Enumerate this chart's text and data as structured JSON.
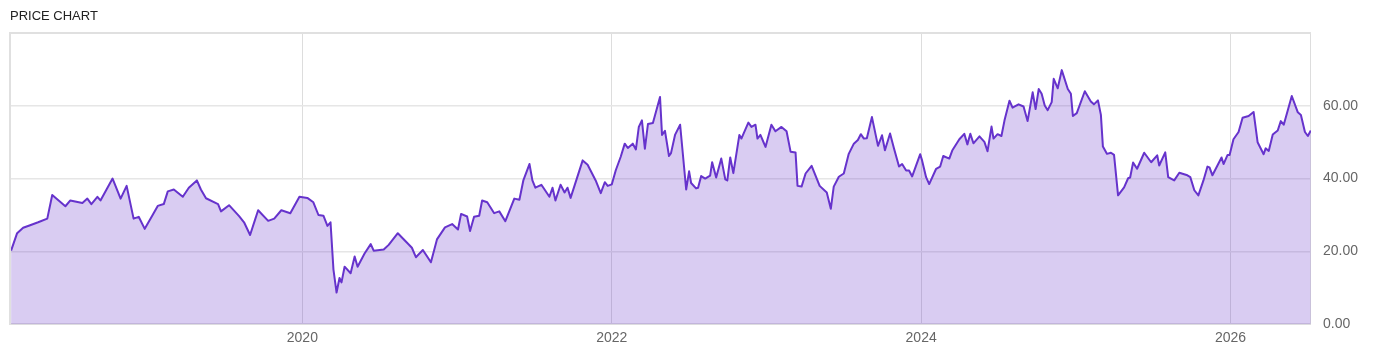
{
  "chart_data": {
    "type": "area",
    "title": "PRICE CHART",
    "xlim": [
      2018.11,
      2026.52
    ],
    "xticks": [
      2020,
      2022,
      2024,
      2026
    ],
    "ylim": [
      0,
      80
    ],
    "yticks": [
      {
        "value": 0,
        "label": "0.00"
      },
      {
        "value": 20,
        "label": "20.00"
      },
      {
        "value": 40,
        "label": "40.00"
      },
      {
        "value": 60,
        "label": "60.00"
      }
    ],
    "grid": true,
    "legend": false,
    "series": [
      {
        "color": "#6633cc",
        "x": [
          2018.117,
          2018.156,
          2018.195,
          2018.24,
          2018.292,
          2018.351,
          2018.383,
          2018.468,
          2018.5,
          2018.578,
          2018.61,
          2018.636,
          2018.675,
          2018.695,
          2018.773,
          2018.792,
          2018.825,
          2018.864,
          2018.909,
          2018.942,
          2018.981,
          2019.032,
          2019.065,
          2019.104,
          2019.13,
          2019.169,
          2019.227,
          2019.266,
          2019.318,
          2019.344,
          2019.377,
          2019.455,
          2019.474,
          2019.526,
          2019.591,
          2019.623,
          2019.662,
          2019.714,
          2019.779,
          2019.818,
          2019.864,
          2019.922,
          2019.981,
          2020.032,
          2020.071,
          2020.104,
          2020.136,
          2020.162,
          2020.182,
          2020.201,
          2020.221,
          2020.24,
          2020.253,
          2020.273,
          2020.312,
          2020.338,
          2020.357,
          2020.403,
          2020.442,
          2020.461,
          2020.526,
          2020.558,
          2020.617,
          2020.708,
          2020.734,
          2020.779,
          2020.831,
          2020.87,
          2020.922,
          2020.968,
          2021.006,
          2021.026,
          2021.065,
          2021.084,
          2021.11,
          2021.143,
          2021.162,
          2021.195,
          2021.24,
          2021.273,
          2021.312,
          2021.37,
          2021.403,
          2021.429,
          2021.468,
          2021.487,
          2021.506,
          2021.545,
          2021.597,
          2021.617,
          2021.636,
          2021.669,
          2021.695,
          2021.714,
          2021.734,
          2021.812,
          2021.844,
          2021.896,
          2021.929,
          2021.955,
          2021.974,
          2022.0,
          2022.026,
          2022.058,
          2022.084,
          2022.104,
          2022.136,
          2022.156,
          2022.175,
          2022.195,
          2022.214,
          2022.234,
          2022.266,
          2022.312,
          2022.325,
          2022.344,
          2022.37,
          2022.383,
          2022.409,
          2022.442,
          2022.481,
          2022.5,
          2022.513,
          2022.545,
          2022.558,
          2022.578,
          2022.604,
          2022.636,
          2022.649,
          2022.675,
          2022.708,
          2022.734,
          2022.747,
          2022.766,
          2022.786,
          2022.825,
          2022.838,
          2022.883,
          2022.903,
          2022.929,
          2022.942,
          2022.961,
          2022.994,
          2023.032,
          2023.058,
          2023.097,
          2023.13,
          2023.156,
          2023.188,
          2023.201,
          2023.227,
          2023.253,
          2023.292,
          2023.344,
          2023.39,
          2023.416,
          2023.435,
          2023.468,
          2023.5,
          2023.532,
          2023.565,
          2023.591,
          2023.61,
          2023.63,
          2023.649,
          2023.682,
          2023.721,
          2023.747,
          2023.766,
          2023.799,
          2023.825,
          2023.857,
          2023.877,
          2023.903,
          2023.922,
          2023.942,
          2023.994,
          2024.006,
          2024.032,
          2024.052,
          2024.097,
          2024.123,
          2024.143,
          2024.182,
          2024.201,
          2024.247,
          2024.279,
          2024.299,
          2024.318,
          2024.338,
          2024.377,
          2024.409,
          2024.429,
          2024.455,
          2024.468,
          2024.494,
          2024.519,
          2024.539,
          2024.571,
          2024.591,
          2024.63,
          2024.662,
          2024.688,
          2024.721,
          2024.74,
          2024.76,
          2024.779,
          2024.799,
          2024.818,
          2024.844,
          2024.857,
          2024.883,
          2024.909,
          2024.948,
          2024.968,
          2024.981,
          2025.006,
          2025.058,
          2025.097,
          2025.117,
          2025.143,
          2025.162,
          2025.175,
          2025.201,
          2025.227,
          2025.247,
          2025.273,
          2025.312,
          2025.338,
          2025.351,
          2025.37,
          2025.396,
          2025.442,
          2025.487,
          2025.526,
          2025.539,
          2025.578,
          2025.597,
          2025.636,
          2025.669,
          2025.721,
          2025.74,
          2025.766,
          2025.792,
          2025.825,
          2025.851,
          2025.864,
          2025.883,
          2025.942,
          2025.955,
          2025.981,
          2025.994,
          2026.019,
          2026.052,
          2026.078,
          2026.117,
          2026.149,
          2026.175,
          2026.214,
          2026.227,
          2026.247,
          2026.273,
          2026.305,
          2026.325,
          2026.344,
          2026.396,
          2026.435,
          2026.455,
          2026.481,
          2026.5,
          2026.519
        ],
        "values": [
          20.2,
          25,
          26.5,
          27.2,
          28,
          29,
          35.5,
          32.4,
          34,
          33.3,
          34.5,
          33,
          35,
          34,
          40,
          38,
          34.5,
          38,
          29,
          29.5,
          26.2,
          30,
          32.5,
          33,
          36.5,
          37,
          35,
          37.5,
          39.5,
          37,
          34.6,
          33,
          31,
          32.7,
          29.7,
          28,
          24.5,
          31.3,
          28.4,
          29,
          31.3,
          30.5,
          35,
          34.7,
          33.5,
          30,
          29.8,
          27,
          28,
          15,
          8.7,
          12.7,
          11.5,
          15.8,
          14,
          18.6,
          15.8,
          19.5,
          22,
          20.2,
          20.5,
          21.8,
          25,
          21,
          18.4,
          20.4,
          17,
          23.3,
          26.6,
          27.5,
          26,
          30.3,
          29.6,
          25.6,
          29.5,
          29.8,
          34,
          33.5,
          30.5,
          31,
          28.3,
          34.5,
          34.2,
          39.6,
          44,
          39.5,
          37.5,
          38.3,
          35,
          37.5,
          34,
          38.3,
          36.2,
          37.5,
          34.7,
          45,
          43.8,
          39.5,
          36,
          39,
          38,
          38.4,
          42.3,
          46,
          49.6,
          48.4,
          49.6,
          48,
          54.2,
          56,
          48.2,
          55,
          55.3,
          62.4,
          52,
          53.1,
          46.2,
          47,
          52,
          54.8,
          37,
          42,
          38.8,
          37.3,
          37.5,
          40.7,
          40,
          40.8,
          44.5,
          40.3,
          45.5,
          39.8,
          39.5,
          45.8,
          41.5,
          52,
          51,
          55.4,
          54.2,
          54.8,
          51,
          52,
          48.7,
          54.8,
          53,
          54.2,
          53,
          47.4,
          47.2,
          38,
          37.8,
          41.4,
          43.5,
          38,
          36.2,
          31.7,
          37.8,
          40.5,
          41.4,
          46.8,
          49.6,
          50.6,
          52.2,
          51,
          51.1,
          56.9,
          49,
          51.9,
          47.8,
          52.4,
          48.2,
          43.3,
          44,
          42.2,
          42.2,
          40.6,
          46.7,
          45,
          40.4,
          38.5,
          42.7,
          43.3,
          46.2,
          45.5,
          47.7,
          50.8,
          52.3,
          49.4,
          52.3,
          49.7,
          51.6,
          50.1,
          47.5,
          54.3,
          51,
          52.2,
          51.7,
          56,
          61.4,
          59.5,
          60.4,
          59.8,
          55.8,
          63.7,
          59.1,
          64.6,
          63.3,
          60.1,
          58.8,
          61,
          67.4,
          64.8,
          69.8,
          64.6,
          63.3,
          57.2,
          58,
          64,
          61.2,
          60.4,
          61.5,
          57.5,
          48.8,
          46.8,
          47.1,
          46.5,
          35.4,
          37.6,
          40.1,
          40.3,
          44.4,
          42.7,
          47.1,
          44.5,
          46.4,
          43.6,
          47.2,
          40.4,
          39.5,
          41.6,
          40.9,
          40.4,
          36.8,
          35.4,
          39.5,
          43.3,
          43.1,
          40.9,
          45.8,
          44,
          46.5,
          46.5,
          50.8,
          52.8,
          56.7,
          57.2,
          58.3,
          50,
          46.7,
          48.3,
          47.6,
          52.1,
          53.2,
          55.8,
          54.8,
          62.7,
          58.2,
          57.5,
          52.8,
          51.7,
          53.2
        ]
      }
    ]
  }
}
